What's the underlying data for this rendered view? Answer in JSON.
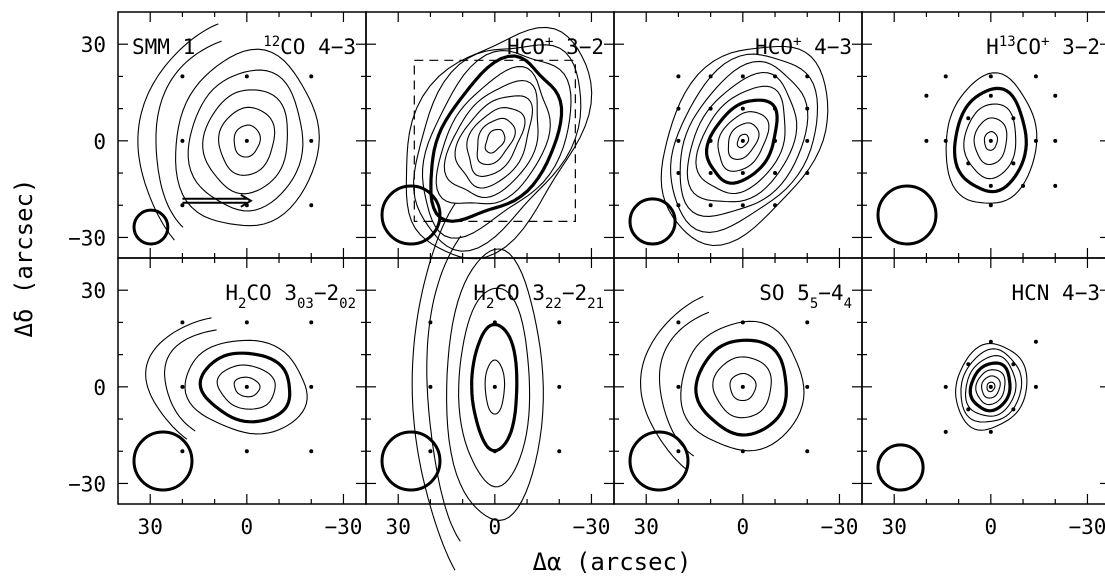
{
  "figure": {
    "ylabel": "Δδ (arcsec)",
    "xlabel": "Δα (arcsec)",
    "source_label": "SMM 1",
    "x_ticks": [
      30,
      0,
      -30
    ],
    "y_ticks": [
      30,
      0,
      -30
    ],
    "x_tick_labels": [
      "30",
      "0",
      "−30"
    ],
    "y_tick_labels": [
      "30",
      "0",
      "−30"
    ],
    "xlim": [
      40,
      -37
    ],
    "ylim": [
      -42,
      40
    ]
  },
  "chart_data": {
    "type": "contour",
    "panels": [
      {
        "id": "12co-4-3",
        "label": "12CO 4-3",
        "mol": "CO 4−3",
        "iso": "12",
        "beam_diameter": 10.5,
        "grid": "3x3-20",
        "peak": [
          0,
          0
        ]
      },
      {
        "id": "hco-3-2",
        "label": "HCO+ 3-2",
        "mol": "HCO",
        "sup": "+",
        "trans": " 3−2",
        "beam_diameter": 18,
        "grid": "none",
        "peak": [
          0,
          0
        ],
        "map_box": [
          25,
          -25,
          25,
          -25
        ]
      },
      {
        "id": "hco-4-3",
        "label": "HCO+ 4-3",
        "mol": "HCO",
        "sup": "+",
        "trans": " 4−3",
        "beam_diameter": 14,
        "grid": "5x5-10",
        "peak": [
          0,
          0
        ]
      },
      {
        "id": "h13co-3-2",
        "label": "H13CO+ 3-2",
        "beam_diameter": 18,
        "grid": "cross-14",
        "peak": [
          0,
          0
        ]
      },
      {
        "id": "h2co-303-202",
        "label": "H2CO 3_03-2_02",
        "beam_diameter": 18,
        "grid": "3x3-20",
        "peak": [
          0,
          0
        ]
      },
      {
        "id": "h2co-322-221",
        "label": "H2CO 3_22-2_21",
        "beam_diameter": 18,
        "grid": "3x3-20",
        "peak": [
          0,
          0
        ]
      },
      {
        "id": "so-55-44",
        "label": "SO 5_5-4_4",
        "beam_diameter": 18,
        "grid": "3x3-20",
        "peak": [
          0,
          0
        ]
      },
      {
        "id": "hcn-4-3",
        "label": "HCN 4-3",
        "mol": "HCN 4−3",
        "beam_diameter": 14,
        "grid": "hex-14",
        "peak": [
          0,
          0
        ]
      }
    ]
  }
}
